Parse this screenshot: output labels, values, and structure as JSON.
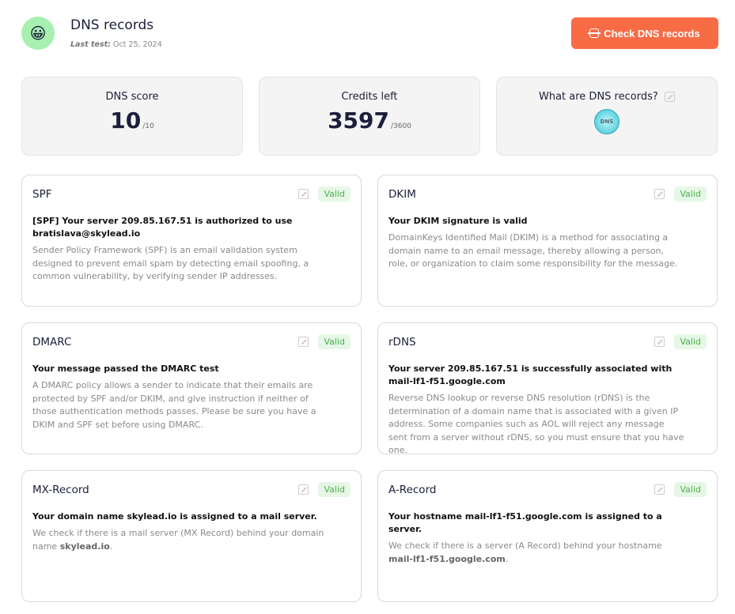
{
  "header": {
    "avatar": "😀",
    "title": "DNS records",
    "last_test_label": "Last test:",
    "last_test_value": "Oct 25, 2024",
    "check_button": "Check DNS records"
  },
  "stats": {
    "score": {
      "label": "DNS score",
      "value": "10",
      "max": "/10"
    },
    "credits": {
      "label": "Credits left",
      "value": "3597",
      "max": "/3600"
    },
    "info": {
      "label": "What are DNS records?",
      "icon_text": "DNS"
    }
  },
  "status_color": "#4caf50",
  "accent": "#f76c45",
  "records": [
    {
      "name": "SPF",
      "status": "Valid",
      "headline": "[SPF] Your server 209.85.167.51 is authorized to use bratislava@skylead.io",
      "desc": "Sender Policy Framework (SPF) is an email validation system designed to prevent email spam by detecting email spoofing, a common vulnerability, by verifying sender IP addresses.",
      "desc_bold": "",
      "desc_after": ""
    },
    {
      "name": "DKIM",
      "status": "Valid",
      "headline": "Your DKIM signature is valid",
      "desc": "DomainKeys Identified Mail (DKIM) is a method for associating a domain name to an email message, thereby allowing a person, role, or organization to claim some responsibility for the message.",
      "desc_bold": "",
      "desc_after": ""
    },
    {
      "name": "DMARC",
      "status": "Valid",
      "headline": "Your message passed the DMARC test",
      "desc": "A DMARC policy allows a sender to indicate that their emails are protected by SPF and/or DKIM, and give instruction if neither of those authentication methods passes. Please be sure you have a DKIM and SPF set before using DMARC.",
      "desc_bold": "",
      "desc_after": ""
    },
    {
      "name": "rDNS",
      "status": "Valid",
      "headline": "Your server 209.85.167.51 is successfully associated with mail-lf1-f51.google.com",
      "desc": "Reverse DNS lookup or reverse DNS resolution (rDNS) is the determination of a domain name that is associated with a given IP address. Some companies such as AOL will reject any message sent from a server without rDNS, so you must ensure that you have one.",
      "desc_bold": "",
      "desc_after": ""
    },
    {
      "name": "MX-Record",
      "status": "Valid",
      "headline": "Your domain name skylead.io is assigned to a mail server.",
      "desc": "We check if there is a mail server (MX Record) behind your domain name ",
      "desc_bold": "skylead.io",
      "desc_after": "."
    },
    {
      "name": "A-Record",
      "status": "Valid",
      "headline": "Your hostname mail-lf1-f51.google.com is assigned to a server.",
      "desc": "We check if there is a server (A Record) behind your hostname ",
      "desc_bold": "mail-lf1-f51.google.com",
      "desc_after": "."
    }
  ]
}
